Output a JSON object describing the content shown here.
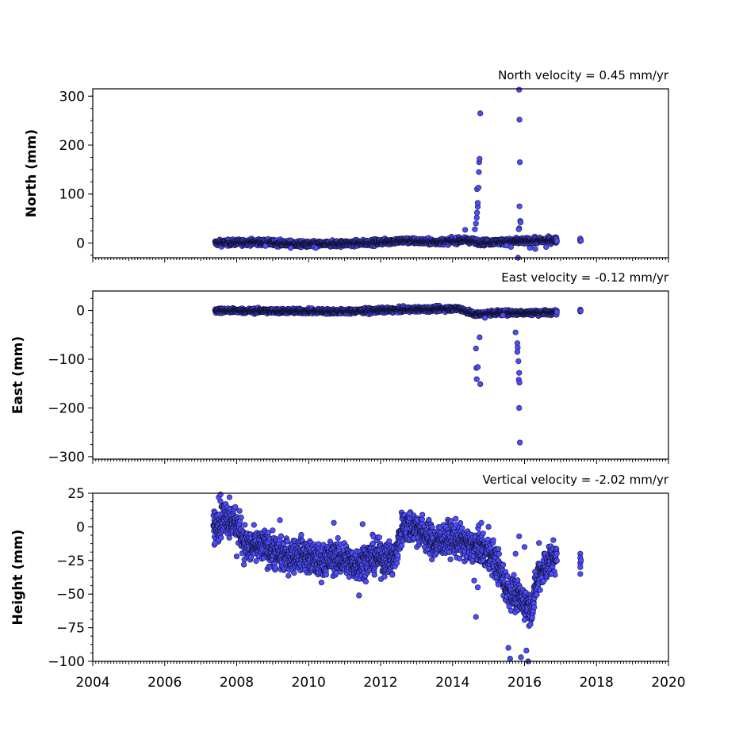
{
  "chart_data": {
    "type": "scatter",
    "shared_x": {
      "xlim": [
        2004,
        2020
      ],
      "tick_labels": [
        "2004",
        "2006",
        "2008",
        "2010",
        "2012",
        "2014",
        "2016",
        "2018",
        "2020"
      ],
      "minor_ticks_per_year": 12
    },
    "marker_color": "#4d4dff",
    "marker_edge_color": "#111133",
    "panels": [
      {
        "id": "north",
        "title": "North velocity = 0.45 mm/yr",
        "ylabel": "North (mm)",
        "ylim": [
          -30,
          315
        ],
        "yticks": [
          0,
          100,
          200,
          300
        ],
        "ytick_labels": [
          "0",
          "100",
          "200",
          "300"
        ],
        "trend": [
          [
            2007.4,
            0
          ],
          [
            2008.5,
            2
          ],
          [
            2010.0,
            -3
          ],
          [
            2011.5,
            0
          ],
          [
            2012.7,
            5
          ],
          [
            2013.5,
            2
          ],
          [
            2014.4,
            6
          ],
          [
            2014.8,
            1
          ],
          [
            2015.5,
            3
          ],
          [
            2016.9,
            6
          ]
        ],
        "noise": 3,
        "outliers": [
          [
            2014.35,
            27
          ],
          [
            2014.62,
            28
          ],
          [
            2014.65,
            40
          ],
          [
            2014.67,
            52
          ],
          [
            2014.68,
            62
          ],
          [
            2014.7,
            74
          ],
          [
            2014.7,
            82
          ],
          [
            2014.68,
            110
          ],
          [
            2014.72,
            113
          ],
          [
            2014.73,
            145
          ],
          [
            2014.74,
            165
          ],
          [
            2014.75,
            172
          ],
          [
            2014.77,
            265
          ],
          [
            2015.5,
            -5
          ],
          [
            2015.62,
            -8
          ],
          [
            2015.85,
            313
          ],
          [
            2015.86,
            252
          ],
          [
            2015.87,
            165
          ],
          [
            2015.86,
            75
          ],
          [
            2015.88,
            45
          ],
          [
            2015.89,
            42
          ],
          [
            2015.85,
            30
          ],
          [
            2015.84,
            28
          ],
          [
            2015.82,
            -30
          ],
          [
            2016.15,
            -10
          ],
          [
            2016.3,
            -12
          ],
          [
            2016.6,
            -8
          ],
          [
            2008.8,
            -6
          ],
          [
            2009.5,
            -10
          ],
          [
            2010.15,
            -8
          ],
          [
            2010.2,
            -10
          ]
        ],
        "extra": [
          [
            2017.55,
            8
          ],
          [
            2017.55,
            6
          ],
          [
            2017.55,
            4
          ],
          [
            2017.55,
            9
          ],
          [
            2017.57,
            5
          ]
        ]
      },
      {
        "id": "east",
        "title": "East velocity = -0.12 mm/yr",
        "ylabel": "East (mm)",
        "ylim": [
          -305,
          40
        ],
        "yticks": [
          0,
          -100,
          -200,
          -300
        ],
        "ytick_labels": [
          "0",
          "−100",
          "−200",
          "−300"
        ],
        "trend": [
          [
            2007.4,
            0
          ],
          [
            2009.0,
            -1
          ],
          [
            2011.0,
            -2
          ],
          [
            2012.7,
            2
          ],
          [
            2014.2,
            4
          ],
          [
            2014.6,
            -8
          ],
          [
            2015.2,
            -5
          ],
          [
            2016.9,
            -4
          ]
        ],
        "noise": 2.5,
        "outliers": [
          [
            2014.65,
            -78
          ],
          [
            2014.66,
            -118
          ],
          [
            2014.7,
            -116
          ],
          [
            2014.67,
            -141
          ],
          [
            2014.77,
            -151
          ],
          [
            2014.75,
            -55
          ],
          [
            2015.75,
            -45
          ],
          [
            2015.8,
            -67
          ],
          [
            2015.81,
            -76
          ],
          [
            2015.8,
            -85
          ],
          [
            2015.83,
            -104
          ],
          [
            2015.85,
            -128
          ],
          [
            2015.84,
            -142
          ],
          [
            2015.86,
            -148
          ],
          [
            2015.85,
            -200
          ],
          [
            2015.87,
            -271
          ],
          [
            2014.9,
            -15
          ],
          [
            2015.4,
            -10
          ]
        ],
        "extra": [
          [
            2017.55,
            0
          ],
          [
            2017.55,
            -2
          ],
          [
            2017.55,
            2
          ],
          [
            2017.56,
            -1
          ]
        ]
      },
      {
        "id": "height",
        "title": "Vertical velocity = -2.02 mm/yr",
        "ylabel": "Height (mm)",
        "ylim": [
          -100,
          25
        ],
        "yticks": [
          25,
          0,
          -25,
          -50,
          -75,
          -100
        ],
        "ytick_labels": [
          "25",
          "0",
          "−25",
          "−50",
          "−75",
          "−100"
        ],
        "trend": [
          [
            2007.35,
            0
          ],
          [
            2007.7,
            8
          ],
          [
            2008.0,
            2
          ],
          [
            2008.3,
            -15
          ],
          [
            2008.8,
            -15
          ],
          [
            2009.3,
            -22
          ],
          [
            2009.8,
            -20
          ],
          [
            2010.3,
            -26
          ],
          [
            2010.8,
            -22
          ],
          [
            2011.3,
            -28
          ],
          [
            2011.8,
            -22
          ],
          [
            2012.4,
            -24
          ],
          [
            2012.6,
            0
          ],
          [
            2013.0,
            0
          ],
          [
            2013.5,
            -12
          ],
          [
            2014.0,
            -8
          ],
          [
            2014.5,
            -15
          ],
          [
            2014.8,
            -15
          ],
          [
            2015.2,
            -25
          ],
          [
            2015.5,
            -45
          ],
          [
            2015.7,
            -50
          ],
          [
            2015.95,
            -55
          ],
          [
            2016.2,
            -60
          ],
          [
            2016.4,
            -35
          ],
          [
            2016.7,
            -25
          ],
          [
            2016.9,
            -22
          ]
        ],
        "noise": 6,
        "outliers": [
          [
            2007.5,
            22
          ],
          [
            2007.55,
            24
          ],
          [
            2007.8,
            22
          ],
          [
            2007.4,
            -12
          ],
          [
            2008.0,
            -22
          ],
          [
            2008.2,
            -28
          ],
          [
            2009.2,
            5
          ],
          [
            2010.7,
            3
          ],
          [
            2011.5,
            2
          ],
          [
            2011.4,
            -51
          ],
          [
            2012.8,
            10
          ],
          [
            2014.65,
            -67
          ],
          [
            2014.6,
            -40
          ],
          [
            2014.7,
            -45
          ],
          [
            2015.55,
            -90
          ],
          [
            2015.6,
            -98
          ],
          [
            2015.9,
            -97
          ],
          [
            2016.05,
            -92
          ],
          [
            2016.1,
            -100
          ],
          [
            2015.85,
            -7
          ],
          [
            2016.0,
            -15
          ],
          [
            2016.4,
            -12
          ],
          [
            2014.8,
            3
          ],
          [
            2015.0,
            0
          ],
          [
            2015.75,
            -20
          ],
          [
            2016.75,
            -35
          ]
        ],
        "extra": [
          [
            2017.55,
            -20
          ],
          [
            2017.55,
            -23
          ],
          [
            2017.55,
            -27
          ],
          [
            2017.55,
            -30
          ],
          [
            2017.55,
            -35
          ],
          [
            2017.57,
            -25
          ]
        ]
      }
    ]
  }
}
